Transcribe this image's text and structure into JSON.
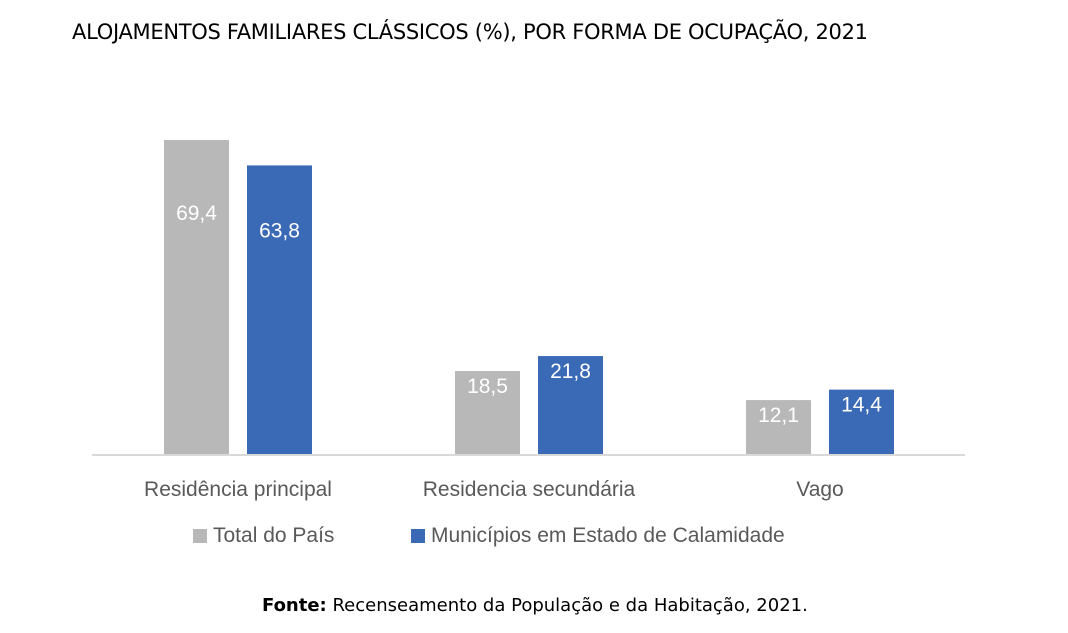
{
  "chart_data": {
    "type": "bar",
    "title": "ALOJAMENTOS FAMILIARES CLÁSSICOS (%), POR FORMA DE OCUPAÇÃO, 2021",
    "categories": [
      "Residência principal",
      "Residencia secundária",
      "Vago"
    ],
    "series": [
      {
        "name": "Total do País",
        "values": [
          69.4,
          18.5,
          12.1
        ],
        "labels": [
          "69,4",
          "18,5",
          "12,1"
        ],
        "color": "#b8b8b8"
      },
      {
        "name": "Municípios em Estado de Calamidade",
        "values": [
          63.8,
          21.8,
          14.4
        ],
        "labels": [
          "63,8",
          "21,8",
          "14,4"
        ],
        "color": "#3a6ab5"
      }
    ],
    "ylim": [
      0,
      70
    ],
    "grid": false,
    "legend": "bottom"
  },
  "source": {
    "label": "Fonte:",
    "text": " Recenseamento da População e da Habitação, 2021."
  }
}
